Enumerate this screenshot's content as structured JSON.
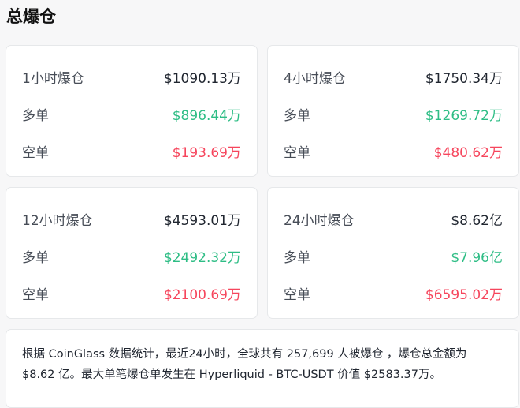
{
  "title": "总爆仓",
  "cards": [
    {
      "label": "1小时爆仓",
      "total": "$1090.13万",
      "long_label": "多单",
      "long": "$896.44万",
      "short_label": "空单",
      "short": "$193.69万"
    },
    {
      "label": "4小时爆仓",
      "total": "$1750.34万",
      "long_label": "多单",
      "long": "$1269.72万",
      "short_label": "空单",
      "short": "$480.62万"
    },
    {
      "label": "12小时爆仓",
      "total": "$4593.01万",
      "long_label": "多单",
      "long": "$2492.32万",
      "short_label": "空单",
      "short": "$2100.69万"
    },
    {
      "label": "24小时爆仓",
      "total": "$8.62亿",
      "long_label": "多单",
      "long": "$7.96亿",
      "short_label": "空单",
      "short": "$6595.02万"
    }
  ],
  "summary": {
    "line1": "根据 CoinGlass 数据统计，最近24小时，全球共有 257,699 人被爆仓 ，爆仓总金额为",
    "line2": "$8.62 亿。最大单笔爆仓单发生在 Hyperliquid - BTC-USDT 价值 $2583.37万。"
  },
  "colors": {
    "long": "#2ebd85",
    "short": "#f6465d"
  }
}
